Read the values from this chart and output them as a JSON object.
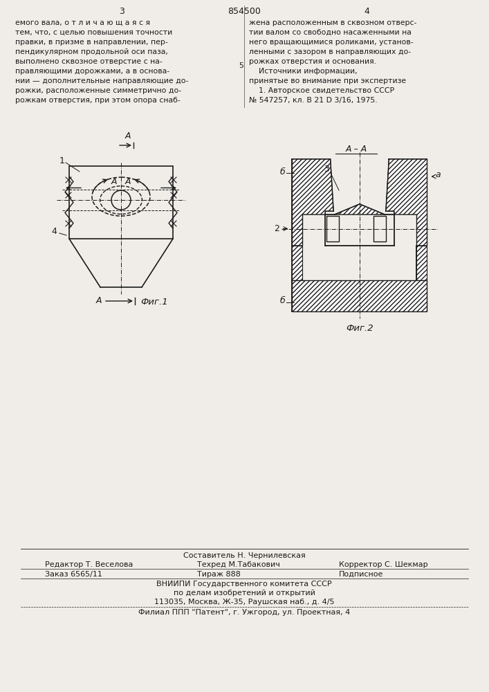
{
  "page_width": 7.07,
  "page_height": 10.0,
  "bg_color": "#f0ede8",
  "text_color": "#1a1a1a",
  "line_color": "#1a1a1a",
  "header_num_left": "3",
  "header_patent": "854500",
  "header_num_right": "4",
  "col_left_lines": [
    "емого вала, о т л и ч а ю щ а я с я",
    "тем, что, с целью повышения точности",
    "правки, в призме в направлении, пер-",
    "пендикулярном продольной оси паза,",
    "выполнено сквозное отверстие с на-",
    "правляющими дорожками, а в основа-",
    "нии — дополнительные направляющие до-",
    "рожки, расположенные симметрично до-",
    "рожкам отверстия, при этом опора снаб-"
  ],
  "col_right_lines": [
    "жена расположенным в сквозном отверс-",
    "тии валом со свободно насаженными на",
    "него вращающимися роликами, установ-",
    "ленными с зазором в направляющих до-",
    "рожках отверстия и основания.",
    "    Источники информации,",
    "принятые во внимание при экспертизе",
    "    1. Авторское свидетельство СССР",
    "№ 547257, кл. В 21 D 3/16, 1975."
  ],
  "footer_line1": "Составитель Н. Чернилевская",
  "footer_line2_left": "Редактор Т. Веселова",
  "footer_line2_mid": "Техред М.Табакович",
  "footer_line2_right": "Корректор С. Шекмар",
  "footer_line3_left": "Заказ 6565/11",
  "footer_line3_mid": "Тираж 888",
  "footer_line3_right": "Подписное",
  "footer_line4": "ВНИИПИ Государственного комитета СССР",
  "footer_line5": "по делам изобретений и открытий",
  "footer_line6": "113035, Москва, Ж-35, Раушская наб., д. 4/5",
  "footer_line7": "Филиал ППП \"Патент\", г. Ужгород, ул. Проектная, 4"
}
